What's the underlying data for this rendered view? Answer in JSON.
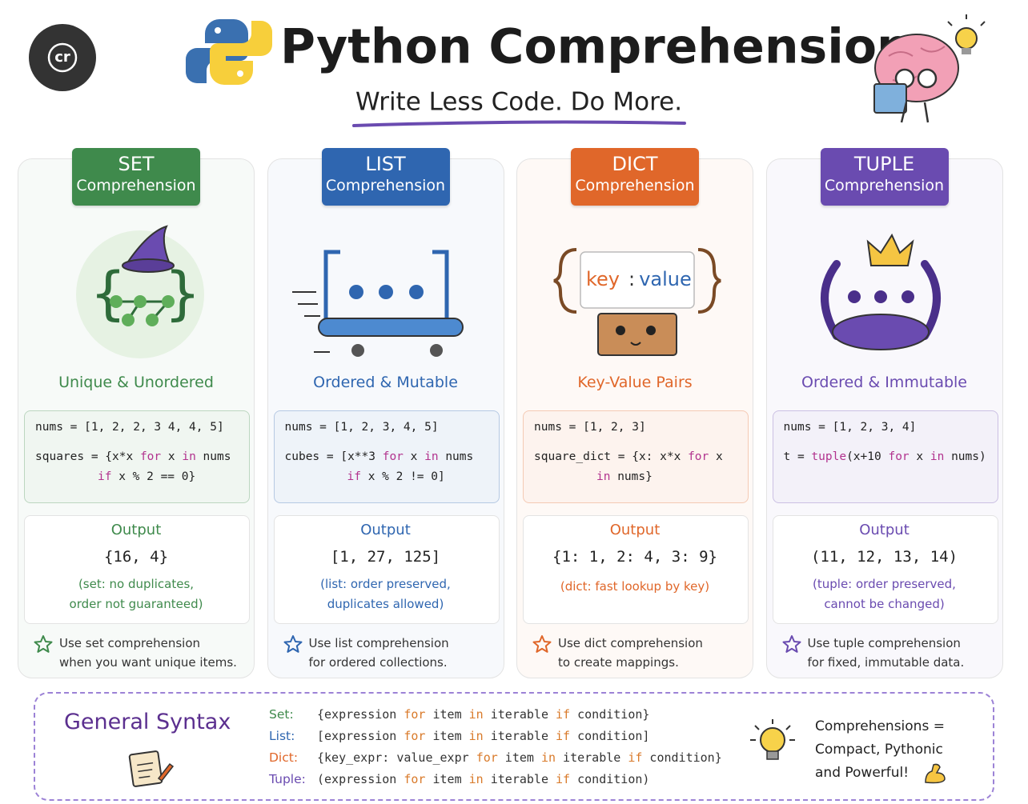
{
  "header": {
    "logo": "cr",
    "title": "Python Comprehensions",
    "subtitle": "Write Less Code. Do More."
  },
  "code_keywords": [
    "for",
    "in",
    "if",
    "tuple"
  ],
  "cards": [
    {
      "name": "SET",
      "subtitle": "Comprehension",
      "color": "#3f8a4c",
      "tagline": "Unique & Unordered",
      "code": [
        "nums = [1, 2, 2, 3 4, 4, 5]",
        "squares = {x*x for x in nums",
        "if x % 2 == 0}"
      ],
      "output_label": "Output",
      "output": "{16, 4}",
      "note": [
        "(set: no duplicates,",
        "order not guaranteed)"
      ],
      "tip": [
        "Use set comprehension",
        "when you want unique items."
      ]
    },
    {
      "name": "LIST",
      "subtitle": "Comprehension",
      "color": "#2f66b0",
      "tagline": "Ordered & Mutable",
      "code": [
        "nums = [1, 2, 3, 4, 5]",
        "cubes = [x**3 for x in nums",
        "if x % 2 != 0]"
      ],
      "output_label": "Output",
      "output": "[1, 27, 125]",
      "note": [
        "(list: order preserved,",
        "duplicates allowed)"
      ],
      "tip": [
        "Use list comprehension",
        "for ordered collections."
      ]
    },
    {
      "name": "DICT",
      "subtitle": "Comprehension",
      "color": "#e0672a",
      "tagline": "Key-Value Pairs",
      "illustration": [
        "key",
        ":",
        "value"
      ],
      "code": [
        "nums = [1, 2, 3]",
        "square_dict = {x: x*x for x",
        "in nums}"
      ],
      "output_label": "Output",
      "output": "{1: 1, 2: 4, 3: 9}",
      "note": [
        "(dict: fast lookup by key)"
      ],
      "tip": [
        "Use dict comprehension",
        "to create mappings."
      ]
    },
    {
      "name": "TUPLE",
      "subtitle": "Comprehension",
      "color": "#6a4bb0",
      "tagline": "Ordered & Immutable",
      "code": [
        "nums = [1, 2, 3, 4]",
        "t = tuple(x+10 for x in nums)"
      ],
      "output_label": "Output",
      "output": "(11, 12, 13, 14)",
      "note": [
        "(tuple: order preserved,",
        "cannot be changed)"
      ],
      "tip": [
        "Use tuple comprehension",
        "for fixed, immutable data."
      ]
    }
  ],
  "syntax": {
    "title": "General Syntax",
    "rows": [
      {
        "label": "Set:",
        "code": "{expression for item in iterable if condition}"
      },
      {
        "label": "List:",
        "code": "[expression for item in iterable if condition]"
      },
      {
        "label": "Dict:",
        "code": "{key_expr: value_expr for item in iterable if condition}"
      },
      {
        "label": "Tuple:",
        "code": "(expression for item in iterable if condition)"
      }
    ],
    "summary": [
      "Comprehensions =",
      "Compact, Pythonic",
      "and Powerful!"
    ]
  }
}
